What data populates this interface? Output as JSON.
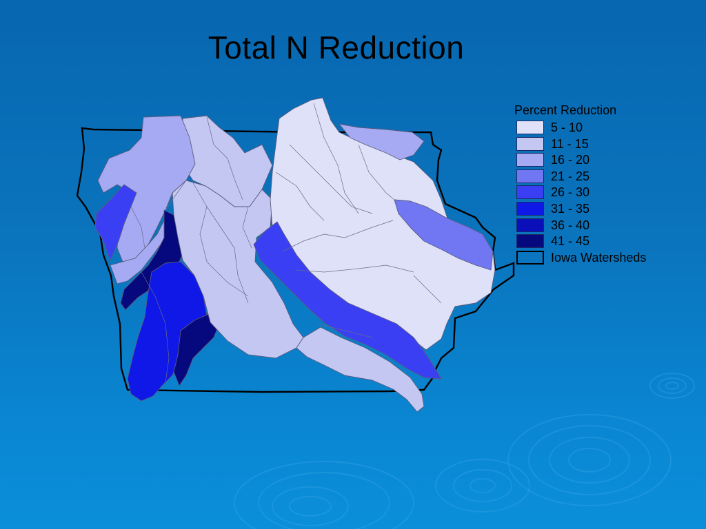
{
  "slide": {
    "title": "Total N Reduction"
  },
  "map": {
    "subject": "Iowa",
    "boundary_color": "#000000",
    "line_color": "#555577"
  },
  "legend": {
    "title": "Percent Reduction",
    "classes": [
      {
        "label": "5 - 10",
        "color": "#dfe1f8"
      },
      {
        "label": "11 - 15",
        "color": "#c3c7f2"
      },
      {
        "label": "16 - 20",
        "color": "#a6aaf2"
      },
      {
        "label": "21 - 25",
        "color": "#7176f2"
      },
      {
        "label": "26 - 30",
        "color": "#3a3ff4"
      },
      {
        "label": "31 - 35",
        "color": "#0f18e6"
      },
      {
        "label": "36 - 40",
        "color": "#0a0fb9"
      },
      {
        "label": "41 - 45",
        "color": "#06087e"
      }
    ],
    "outline_label": "Iowa Watersheds"
  }
}
